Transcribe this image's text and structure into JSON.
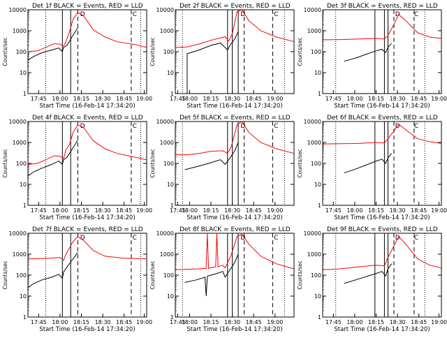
{
  "panel_template": {
    "xlabel_text": "Start Time (16-Feb-14 17:34:20)",
    "ylabel_text": "Counts/sec",
    "y_ticks": [
      "1",
      "10",
      "100",
      "1000",
      "10000"
    ],
    "series_colors": {
      "events": "#000000",
      "lld": "#ff0000"
    },
    "marker_letters": [
      "D",
      "C"
    ]
  },
  "chart_data": [
    {
      "type": "line",
      "title": "Det 1f BLACK = Events, RED = LLD",
      "x_ticks": [
        "17:45",
        "18:00",
        "18:15",
        "18:30",
        "18:45",
        "19:00"
      ],
      "scale": "log",
      "ylim": [
        1,
        10000
      ],
      "series": [
        {
          "points": [
            [
              0,
              40
            ],
            [
              0.05,
              60
            ],
            [
              0.12,
              90
            ],
            [
              0.2,
              120
            ],
            [
              0.26,
              150
            ],
            [
              0.29,
              100
            ],
            [
              0.3,
              160
            ],
            [
              0.33,
              200
            ],
            [
              0.37,
              500
            ],
            [
              0.42,
              1400
            ]
          ]
        },
        {
          "points": [
            [
              0,
              100
            ],
            [
              0.08,
              110
            ],
            [
              0.15,
              160
            ],
            [
              0.22,
              240
            ],
            [
              0.27,
              230
            ],
            [
              0.3,
              180
            ],
            [
              0.32,
              300
            ],
            [
              0.35,
              900
            ],
            [
              0.38,
              3500
            ],
            [
              0.42,
              7500
            ],
            [
              0.47,
              5000
            ],
            [
              0.55,
              1100
            ],
            [
              0.65,
              500
            ],
            [
              0.75,
              300
            ],
            [
              0.9,
              220
            ],
            [
              1,
              160
            ]
          ]
        }
      ]
    },
    {
      "type": "line",
      "title": "Det 2f BLACK = Events, RED = LLD",
      "x_ticks": [
        "17:45",
        "18:00",
        "18:15",
        "18:30",
        "18:45",
        "19:00"
      ],
      "scale": "log",
      "ylim": [
        1,
        10000
      ],
      "series": [
        {
          "points": [
            [
              0.1,
              1
            ],
            [
              0.1,
              80
            ],
            [
              0.2,
              120
            ],
            [
              0.3,
              200
            ],
            [
              0.38,
              260
            ],
            [
              0.44,
              120
            ],
            [
              0.46,
              200
            ],
            [
              0.5,
              400
            ],
            [
              0.53,
              900
            ]
          ]
        },
        {
          "points": [
            [
              0,
              160
            ],
            [
              0.1,
              170
            ],
            [
              0.2,
              230
            ],
            [
              0.3,
              350
            ],
            [
              0.42,
              520
            ],
            [
              0.45,
              320
            ],
            [
              0.48,
              700
            ],
            [
              0.52,
              8000
            ],
            [
              0.56,
              10000
            ],
            [
              0.62,
              3000
            ],
            [
              0.72,
              1000
            ],
            [
              0.85,
              500
            ],
            [
              1,
              300
            ]
          ]
        }
      ]
    },
    {
      "type": "line",
      "title": "Det 3f BLACK = Events, RED = LLD",
      "x_ticks": [
        "17:45",
        "18:00",
        "18:15",
        "18:30",
        "18:45",
        "19:00"
      ],
      "scale": "log",
      "ylim": [
        1,
        10000
      ],
      "series": [
        {
          "points": [
            [
              0.18,
              35
            ],
            [
              0.28,
              50
            ],
            [
              0.38,
              80
            ],
            [
              0.45,
              110
            ],
            [
              0.5,
              130
            ],
            [
              0.53,
              90
            ],
            [
              0.55,
              160
            ],
            [
              0.58,
              250
            ]
          ]
        },
        {
          "points": [
            [
              0,
              370
            ],
            [
              0.15,
              380
            ],
            [
              0.3,
              400
            ],
            [
              0.45,
              430
            ],
            [
              0.52,
              400
            ],
            [
              0.55,
              600
            ],
            [
              0.6,
              2000
            ],
            [
              0.64,
              6000
            ],
            [
              0.7,
              3000
            ],
            [
              0.8,
              800
            ],
            [
              0.9,
              500
            ],
            [
              1,
              430
            ]
          ]
        }
      ]
    },
    {
      "type": "line",
      "title": "Det 4f BLACK = Events, RED = LLD",
      "x_ticks": [
        "17:45",
        "18:00",
        "18:15",
        "18:30",
        "18:45",
        "19:00"
      ],
      "scale": "log",
      "ylim": [
        1,
        10000
      ],
      "series": [
        {
          "points": [
            [
              0,
              25
            ],
            [
              0.05,
              40
            ],
            [
              0.12,
              60
            ],
            [
              0.2,
              90
            ],
            [
              0.26,
              130
            ],
            [
              0.29,
              90
            ],
            [
              0.3,
              150
            ],
            [
              0.33,
              200
            ],
            [
              0.37,
              450
            ],
            [
              0.42,
              1300
            ]
          ]
        },
        {
          "points": [
            [
              0,
              90
            ],
            [
              0.08,
              100
            ],
            [
              0.15,
              150
            ],
            [
              0.22,
              230
            ],
            [
              0.27,
              220
            ],
            [
              0.3,
              170
            ],
            [
              0.32,
              450
            ],
            [
              0.35,
              800
            ],
            [
              0.38,
              3000
            ],
            [
              0.42,
              7000
            ],
            [
              0.47,
              5000
            ],
            [
              0.55,
              1200
            ],
            [
              0.65,
              500
            ],
            [
              0.75,
              300
            ],
            [
              0.9,
              200
            ],
            [
              1,
              150
            ]
          ]
        }
      ]
    },
    {
      "type": "line",
      "title": "Det 5f BLACK = Events, RED = LLD",
      "x_ticks": [
        "17:45",
        "18:00",
        "18:15",
        "18:30",
        "18:45",
        "19:00"
      ],
      "scale": "log",
      "ylim": [
        1,
        10000
      ],
      "series": [
        {
          "points": [
            [
              0.08,
              50
            ],
            [
              0.18,
              70
            ],
            [
              0.28,
              100
            ],
            [
              0.38,
              150
            ],
            [
              0.42,
              90
            ],
            [
              0.46,
              180
            ],
            [
              0.5,
              400
            ],
            [
              0.53,
              1000
            ]
          ]
        },
        {
          "points": [
            [
              0,
              260
            ],
            [
              0.1,
              260
            ],
            [
              0.2,
              300
            ],
            [
              0.3,
              380
            ],
            [
              0.4,
              400
            ],
            [
              0.44,
              300
            ],
            [
              0.47,
              600
            ],
            [
              0.52,
              7000
            ],
            [
              0.56,
              10000
            ],
            [
              0.62,
              3000
            ],
            [
              0.72,
              1000
            ],
            [
              0.85,
              500
            ],
            [
              1,
              300
            ]
          ]
        }
      ]
    },
    {
      "type": "line",
      "title": "Det 6f BLACK = Events, RED = LLD",
      "x_ticks": [
        "17:45",
        "18:00",
        "18:15",
        "18:30",
        "18:45",
        "19:00"
      ],
      "scale": "log",
      "ylim": [
        1,
        10000
      ],
      "series": [
        {
          "points": [
            [
              0.18,
              35
            ],
            [
              0.28,
              55
            ],
            [
              0.38,
              90
            ],
            [
              0.45,
              130
            ],
            [
              0.5,
              160
            ],
            [
              0.53,
              100
            ],
            [
              0.55,
              180
            ],
            [
              0.58,
              300
            ]
          ]
        },
        {
          "points": [
            [
              0,
              850
            ],
            [
              0.15,
              870
            ],
            [
              0.3,
              900
            ],
            [
              0.45,
              1000
            ],
            [
              0.52,
              950
            ],
            [
              0.55,
              1500
            ],
            [
              0.6,
              3500
            ],
            [
              0.64,
              7500
            ],
            [
              0.7,
              4000
            ],
            [
              0.8,
              1500
            ],
            [
              0.9,
              1100
            ],
            [
              1,
              900
            ]
          ]
        }
      ]
    },
    {
      "type": "line",
      "title": "Det 7f BLACK = Events, RED = LLD",
      "x_ticks": [
        "17:45",
        "18:00",
        "18:15",
        "18:30",
        "18:45",
        "19:00"
      ],
      "scale": "log",
      "ylim": [
        1,
        10000
      ],
      "series": [
        {
          "points": [
            [
              0,
              25
            ],
            [
              0.05,
              40
            ],
            [
              0.12,
              60
            ],
            [
              0.2,
              80
            ],
            [
              0.26,
              110
            ],
            [
              0.29,
              70
            ],
            [
              0.3,
              140
            ],
            [
              0.33,
              250
            ],
            [
              0.37,
              500
            ],
            [
              0.42,
              1200
            ]
          ]
        },
        {
          "points": [
            [
              0,
              600
            ],
            [
              0.1,
              620
            ],
            [
              0.2,
              650
            ],
            [
              0.27,
              700
            ],
            [
              0.3,
              500
            ],
            [
              0.32,
              1000
            ],
            [
              0.35,
              2000
            ],
            [
              0.38,
              4000
            ],
            [
              0.42,
              7000
            ],
            [
              0.47,
              4500
            ],
            [
              0.55,
              1500
            ],
            [
              0.65,
              800
            ],
            [
              0.8,
              650
            ],
            [
              1,
              600
            ]
          ]
        }
      ]
    },
    {
      "type": "line",
      "title": "Det 8f BLACK = Events, RED = LLD",
      "x_ticks": [
        "17:45",
        "18:00",
        "18:15",
        "18:30",
        "18:45",
        "19:00"
      ],
      "scale": "log",
      "ylim": [
        1,
        10000
      ],
      "series": [
        {
          "points": [
            [
              0.08,
              45
            ],
            [
              0.18,
              60
            ],
            [
              0.25,
              80
            ],
            [
              0.26,
              10
            ],
            [
              0.27,
              90
            ],
            [
              0.35,
              120
            ],
            [
              0.4,
              150
            ],
            [
              0.42,
              80
            ],
            [
              0.46,
              180
            ],
            [
              0.5,
              400
            ],
            [
              0.53,
              1000
            ]
          ]
        },
        {
          "points": [
            [
              0,
              180
            ],
            [
              0.1,
              190
            ],
            [
              0.2,
              200
            ],
            [
              0.26,
              210
            ],
            [
              0.27,
              10000
            ],
            [
              0.28,
              210
            ],
            [
              0.34,
              250
            ],
            [
              0.35,
              10000
            ],
            [
              0.36,
              250
            ],
            [
              0.4,
              300
            ],
            [
              0.42,
              220
            ],
            [
              0.47,
              900
            ],
            [
              0.52,
              7000
            ],
            [
              0.56,
              9000
            ],
            [
              0.62,
              3000
            ],
            [
              0.72,
              800
            ],
            [
              0.85,
              350
            ],
            [
              1,
              200
            ]
          ]
        }
      ]
    },
    {
      "type": "line",
      "title": "Det 9f BLACK = Events, RED = LLD",
      "x_ticks": [
        "17:45",
        "18:00",
        "18:15",
        "18:30",
        "18:45",
        "19:00"
      ],
      "scale": "log",
      "ylim": [
        1,
        10000
      ],
      "series": [
        {
          "points": [
            [
              0.18,
              40
            ],
            [
              0.28,
              60
            ],
            [
              0.38,
              90
            ],
            [
              0.45,
              120
            ],
            [
              0.5,
              150
            ],
            [
              0.53,
              90
            ],
            [
              0.55,
              200
            ],
            [
              0.58,
              350
            ]
          ]
        },
        {
          "points": [
            [
              0,
              180
            ],
            [
              0.15,
              200
            ],
            [
              0.3,
              250
            ],
            [
              0.45,
              300
            ],
            [
              0.52,
              280
            ],
            [
              0.55,
              700
            ],
            [
              0.6,
              2500
            ],
            [
              0.64,
              7000
            ],
            [
              0.7,
              3000
            ],
            [
              0.8,
              600
            ],
            [
              0.9,
              300
            ],
            [
              1,
              220
            ]
          ]
        }
      ]
    }
  ]
}
